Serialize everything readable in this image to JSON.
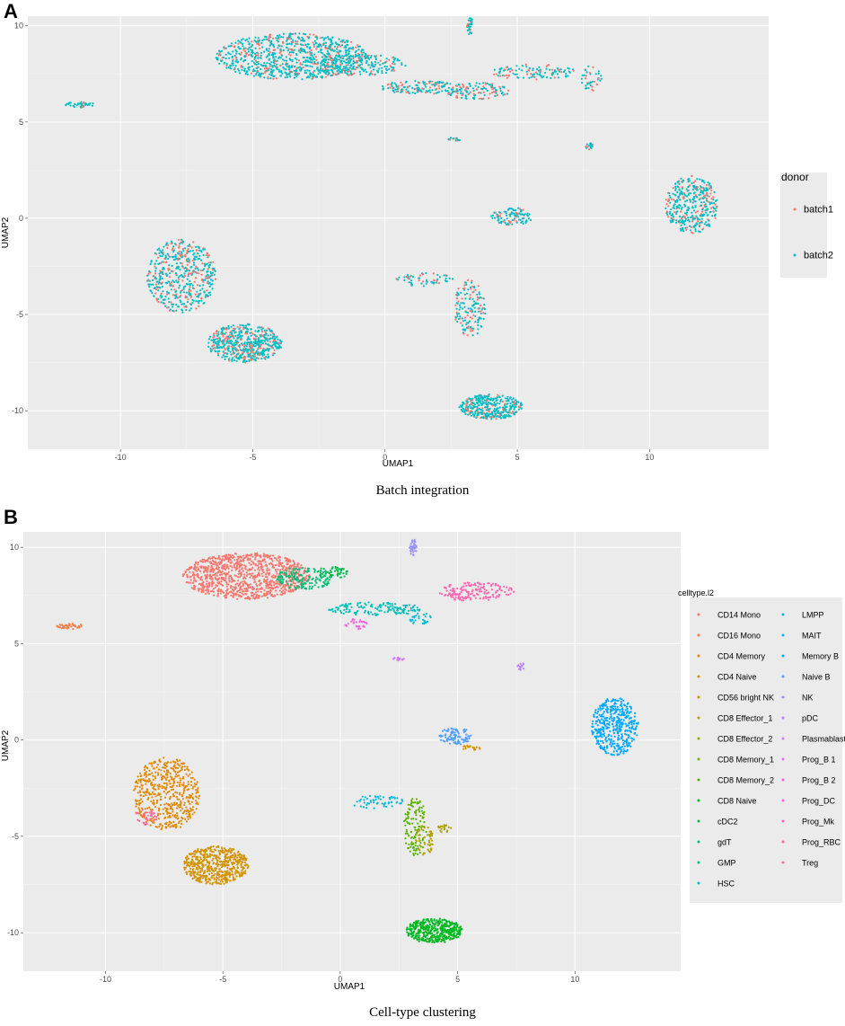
{
  "panel_a": {
    "letter": "A",
    "caption": "Batch integration"
  },
  "panel_b": {
    "letter": "B",
    "caption": "Cell-type clustering"
  },
  "colors": {
    "panel_bg": "#ebebeb",
    "grid": "#ffffff"
  },
  "chart_data": [
    {
      "type": "scatter",
      "title": "",
      "xlabel": "UMAP1",
      "ylabel": "UMAP2",
      "xlim": [
        -13.5,
        14.5
      ],
      "ylim": [
        -12,
        10.5
      ],
      "xticks": [
        -10,
        -5,
        0,
        5,
        10
      ],
      "yticks": [
        -10,
        -5,
        0,
        5,
        10
      ],
      "legend": {
        "title": "donor",
        "position": "right"
      },
      "series": [
        {
          "name": "batch1",
          "color": "#f8766d"
        },
        {
          "name": "batch2",
          "color": "#00bfc4"
        }
      ],
      "clusters": [
        {
          "cx": -3.5,
          "cy": 8.4,
          "rx": 2.9,
          "ry": 1.2,
          "n": 900,
          "batch1_share": 0.2
        },
        {
          "cx": -1.0,
          "cy": 8.0,
          "rx": 1.8,
          "ry": 0.6,
          "n": 200,
          "batch1_share": 0.25
        },
        {
          "cx": 1.5,
          "cy": 6.8,
          "rx": 1.7,
          "ry": 0.35,
          "n": 140,
          "batch1_share": 0.3
        },
        {
          "cx": 3.5,
          "cy": 6.6,
          "rx": 1.2,
          "ry": 0.45,
          "n": 120,
          "batch1_share": 0.3
        },
        {
          "cx": 5.6,
          "cy": 7.6,
          "rx": 1.6,
          "ry": 0.4,
          "n": 110,
          "batch1_share": 0.35
        },
        {
          "cx": 7.8,
          "cy": 7.3,
          "rx": 0.4,
          "ry": 0.7,
          "n": 40,
          "batch1_share": 0.3
        },
        {
          "cx": 3.2,
          "cy": 10.0,
          "rx": 0.15,
          "ry": 0.45,
          "n": 30,
          "batch1_share": 0.2
        },
        {
          "cx": -11.5,
          "cy": 5.9,
          "rx": 0.6,
          "ry": 0.15,
          "n": 40,
          "batch1_share": 0.2
        },
        {
          "cx": 2.6,
          "cy": 4.1,
          "rx": 0.25,
          "ry": 0.1,
          "n": 15,
          "batch1_share": 0.3
        },
        {
          "cx": 7.7,
          "cy": 3.8,
          "rx": 0.15,
          "ry": 0.25,
          "n": 15,
          "batch1_share": 0.3
        },
        {
          "cx": 11.6,
          "cy": 0.7,
          "rx": 1.0,
          "ry": 1.5,
          "n": 380,
          "batch1_share": 0.3
        },
        {
          "cx": 4.8,
          "cy": 0.1,
          "rx": 0.8,
          "ry": 0.45,
          "n": 110,
          "batch1_share": 0.25
        },
        {
          "cx": 1.5,
          "cy": -3.2,
          "rx": 1.2,
          "ry": 0.35,
          "n": 60,
          "batch1_share": 0.3
        },
        {
          "cx": 3.2,
          "cy": -4.7,
          "rx": 0.6,
          "ry": 1.5,
          "n": 160,
          "batch1_share": 0.3
        },
        {
          "cx": -7.7,
          "cy": -3.0,
          "rx": 1.3,
          "ry": 1.9,
          "n": 500,
          "batch1_share": 0.3
        },
        {
          "cx": -5.3,
          "cy": -6.5,
          "rx": 1.4,
          "ry": 1.0,
          "n": 550,
          "batch1_share": 0.25
        },
        {
          "cx": 4.0,
          "cy": -9.8,
          "rx": 1.2,
          "ry": 0.65,
          "n": 380,
          "batch1_share": 0.2
        }
      ]
    },
    {
      "type": "scatter",
      "title": "",
      "xlabel": "UMAP1",
      "ylabel": "UMAP2",
      "xlim": [
        -13.5,
        14.5
      ],
      "ylim": [
        -12,
        10.8
      ],
      "xticks": [
        -10,
        -5,
        0,
        5,
        10
      ],
      "yticks": [
        -10,
        -5,
        0,
        5,
        10
      ],
      "legend": {
        "title": "celltype.l2",
        "position": "right",
        "columns": 2
      },
      "series": [
        {
          "name": "CD14 Mono",
          "color": "#f8766d"
        },
        {
          "name": "CD16 Mono",
          "color": "#f07f4a"
        },
        {
          "name": "CD4 Memory",
          "color": "#e38900"
        },
        {
          "name": "CD4 Naive",
          "color": "#d39200"
        },
        {
          "name": "CD56 bright NK",
          "color": "#c09b00"
        },
        {
          "name": "CD8 Effector_1",
          "color": "#aba300"
        },
        {
          "name": "CD8 Effector_2",
          "color": "#93aa00"
        },
        {
          "name": "CD8 Memory_1",
          "color": "#7cae00"
        },
        {
          "name": "CD8 Memory_2",
          "color": "#5bb300"
        },
        {
          "name": "CD8 Naive",
          "color": "#00b81f"
        },
        {
          "name": "cDC2",
          "color": "#00bb4e"
        },
        {
          "name": "gdT",
          "color": "#00bf74"
        },
        {
          "name": "GMP",
          "color": "#00c19a"
        },
        {
          "name": "HSC",
          "color": "#00c0b8"
        },
        {
          "name": "LMPP",
          "color": "#00bcd8"
        },
        {
          "name": "MAIT",
          "color": "#00b4f0"
        },
        {
          "name": "Memory B",
          "color": "#00a9ff"
        },
        {
          "name": "Naive B",
          "color": "#529eff"
        },
        {
          "name": "NK",
          "color": "#9590ff"
        },
        {
          "name": "pDC",
          "color": "#ba83ff"
        },
        {
          "name": "Plasmablast",
          "color": "#d376ff"
        },
        {
          "name": "Prog_B 1",
          "color": "#e76bf3"
        },
        {
          "name": "Prog_B 2",
          "color": "#f564e3"
        },
        {
          "name": "Prog_DC",
          "color": "#fd61d1"
        },
        {
          "name": "Prog_Mk",
          "color": "#ff64b0"
        },
        {
          "name": "Prog_RBC",
          "color": "#ff6a98"
        },
        {
          "name": "Treg",
          "color": "#ff6c91"
        }
      ],
      "clusters": [
        {
          "cx": -4.0,
          "cy": 8.5,
          "rx": 2.7,
          "ry": 1.2,
          "n": 1000,
          "series": "CD14 Mono"
        },
        {
          "cx": -1.5,
          "cy": 8.4,
          "rx": 1.2,
          "ry": 0.6,
          "n": 160,
          "series": "gdT"
        },
        {
          "cx": -0.3,
          "cy": 8.7,
          "rx": 0.7,
          "ry": 0.3,
          "n": 50,
          "series": "cDC2"
        },
        {
          "cx": 1.5,
          "cy": 6.8,
          "rx": 2.0,
          "ry": 0.35,
          "n": 150,
          "series": "HSC"
        },
        {
          "cx": 0.7,
          "cy": 6.0,
          "rx": 0.5,
          "ry": 0.3,
          "n": 30,
          "series": "Prog_B 2"
        },
        {
          "cx": 5.8,
          "cy": 7.7,
          "rx": 1.6,
          "ry": 0.5,
          "n": 170,
          "series": "Prog_Mk"
        },
        {
          "cx": 3.4,
          "cy": 6.3,
          "rx": 0.5,
          "ry": 0.3,
          "n": 30,
          "series": "LMPP"
        },
        {
          "cx": 3.1,
          "cy": 10.0,
          "rx": 0.15,
          "ry": 0.45,
          "n": 35,
          "series": "NK"
        },
        {
          "cx": -11.5,
          "cy": 5.9,
          "rx": 0.6,
          "ry": 0.15,
          "n": 40,
          "series": "CD16 Mono"
        },
        {
          "cx": 2.5,
          "cy": 4.2,
          "rx": 0.25,
          "ry": 0.1,
          "n": 15,
          "series": "Plasmablast"
        },
        {
          "cx": 7.7,
          "cy": 3.8,
          "rx": 0.15,
          "ry": 0.25,
          "n": 15,
          "series": "pDC"
        },
        {
          "cx": 11.7,
          "cy": 0.7,
          "rx": 1.0,
          "ry": 1.5,
          "n": 420,
          "series": "Memory B"
        },
        {
          "cx": 4.9,
          "cy": 0.2,
          "rx": 0.7,
          "ry": 0.45,
          "n": 100,
          "series": "Naive B"
        },
        {
          "cx": 5.6,
          "cy": -0.4,
          "rx": 0.4,
          "ry": 0.15,
          "n": 20,
          "series": "CD4 Naive"
        },
        {
          "cx": 1.5,
          "cy": -3.2,
          "rx": 1.2,
          "ry": 0.35,
          "n": 60,
          "series": "LMPP"
        },
        {
          "cx": 3.2,
          "cy": -4.5,
          "rx": 0.5,
          "ry": 1.5,
          "n": 130,
          "series": "CD8 Memory_2"
        },
        {
          "cx": 3.6,
          "cy": -5.2,
          "rx": 0.4,
          "ry": 0.8,
          "n": 50,
          "series": "CD8 Effector_1"
        },
        {
          "cx": 4.4,
          "cy": -4.6,
          "rx": 0.35,
          "ry": 0.2,
          "n": 20,
          "series": "CD8 Effector_1"
        },
        {
          "cx": -7.4,
          "cy": -2.8,
          "rx": 1.4,
          "ry": 1.9,
          "n": 520,
          "series": "CD4 Memory"
        },
        {
          "cx": -8.3,
          "cy": -4.0,
          "rx": 0.5,
          "ry": 0.4,
          "n": 40,
          "series": "Prog_RBC"
        },
        {
          "cx": -5.3,
          "cy": -6.5,
          "rx": 1.4,
          "ry": 1.0,
          "n": 560,
          "series": "CD4 Naive"
        },
        {
          "cx": 4.0,
          "cy": -9.9,
          "rx": 1.2,
          "ry": 0.65,
          "n": 420,
          "series": "CD8 Naive"
        }
      ]
    }
  ]
}
